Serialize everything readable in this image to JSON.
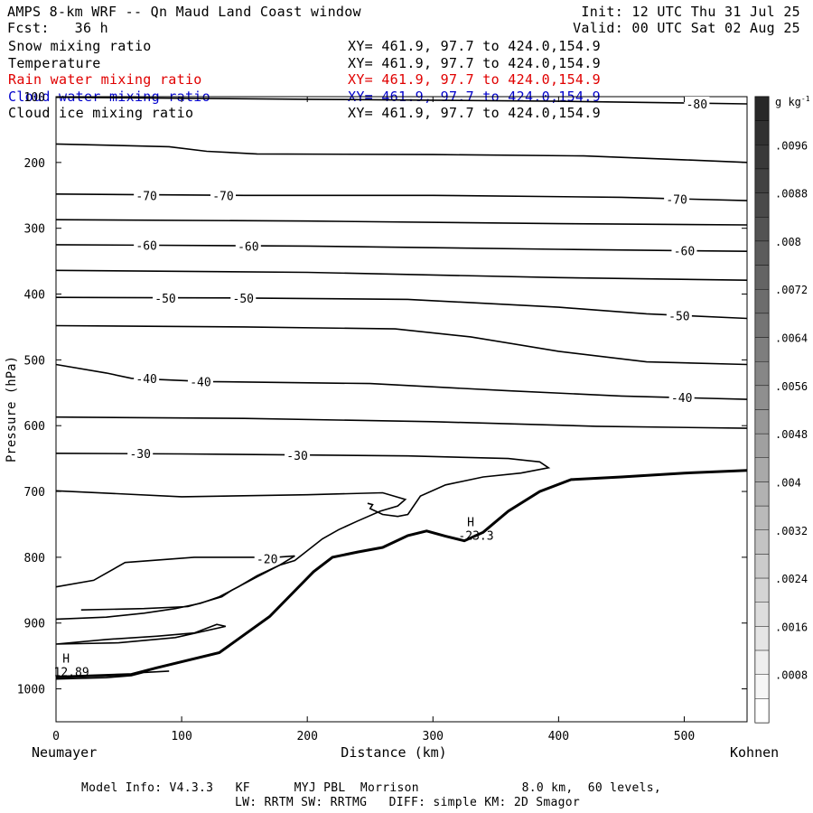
{
  "header": {
    "title": "AMPS 8-km WRF -- Qn Maud Land Coast window",
    "init": "Init: 12 UTC Thu 31 Jul 25",
    "fcst": "Fcst:   36 h",
    "valid": "Valid: 00 UTC Sat 02 Aug 25"
  },
  "fields": [
    {
      "label": "Snow mixing ratio",
      "xy": "XY= 461.9, 97.7 to 424.0,154.9",
      "color": "#000000"
    },
    {
      "label": "Temperature",
      "xy": "XY= 461.9, 97.7 to 424.0,154.9",
      "color": "#000000"
    },
    {
      "label": "Rain water mixing ratio",
      "xy": "XY= 461.9, 97.7 to 424.0,154.9",
      "color": "#e00000"
    },
    {
      "label": "Cloud water mixing ratio",
      "xy": "XY= 461.9, 97.7 to 424.0,154.9",
      "color": "#0000cc"
    },
    {
      "label": "Cloud ice mixing ratio",
      "xy": "XY= 461.9, 97.7 to 424.0,154.9",
      "color": "#000000"
    }
  ],
  "footer": {
    "line1": "Model Info: V4.3.3   KF      MYJ PBL  Morrison              8.0 km,  60 levels,",
    "line2": "LW: RRTM SW: RRTMG   DIFF: simple KM: 2D Smagor"
  },
  "endpoints": {
    "left": "Neumayer",
    "right": "Kohnen"
  },
  "chart_data": {
    "type": "contour",
    "xlabel": "Distance (km)",
    "ylabel": "Pressure (hPa)",
    "xlim": [
      0,
      550
    ],
    "ylim": [
      1050,
      100
    ],
    "x_ticks": [
      0,
      100,
      200,
      300,
      400,
      500
    ],
    "y_ticks": [
      100,
      200,
      300,
      400,
      500,
      600,
      700,
      800,
      900,
      1000
    ],
    "colorbar": {
      "unit": "g kg-1",
      "labels": [
        ".0096",
        ".0088",
        ".008",
        ".0072",
        ".0064",
        ".0056",
        ".0048",
        ".004",
        ".0032",
        ".0024",
        ".0016",
        ".0008"
      ],
      "levels": [
        0.0008,
        0.0016,
        0.0024,
        0.0032,
        0.004,
        0.0048,
        0.0056,
        0.0064,
        0.0072,
        0.008,
        0.0088,
        0.0096
      ]
    },
    "isotherms": [
      {
        "level": -80,
        "points": [
          [
            0,
            101
          ],
          [
            200,
            104
          ],
          [
            400,
            107
          ],
          [
            550,
            111
          ]
        ],
        "labels": [
          [
            510,
            111
          ]
        ]
      },
      {
        "level": -75,
        "points": [
          [
            0,
            172
          ],
          [
            90,
            176
          ],
          [
            120,
            183
          ],
          [
            160,
            187
          ],
          [
            300,
            188
          ],
          [
            420,
            190
          ],
          [
            500,
            196
          ],
          [
            550,
            200
          ]
        ],
        "labels": []
      },
      {
        "level": -70,
        "points": [
          [
            0,
            248
          ],
          [
            150,
            250
          ],
          [
            300,
            250
          ],
          [
            450,
            253
          ],
          [
            550,
            258
          ]
        ],
        "labels": [
          [
            72,
            250
          ],
          [
            133,
            250
          ],
          [
            494,
            256
          ]
        ]
      },
      {
        "level": -65,
        "points": [
          [
            0,
            287
          ],
          [
            200,
            289
          ],
          [
            400,
            293
          ],
          [
            550,
            295
          ]
        ],
        "labels": []
      },
      {
        "level": -60,
        "points": [
          [
            0,
            325
          ],
          [
            200,
            327
          ],
          [
            400,
            332
          ],
          [
            550,
            335
          ]
        ],
        "labels": [
          [
            72,
            326
          ],
          [
            153,
            327
          ],
          [
            500,
            334
          ]
        ]
      },
      {
        "level": -55,
        "points": [
          [
            0,
            364
          ],
          [
            200,
            367
          ],
          [
            400,
            375
          ],
          [
            550,
            379
          ]
        ],
        "labels": []
      },
      {
        "level": -50,
        "points": [
          [
            0,
            405
          ],
          [
            150,
            406
          ],
          [
            280,
            408
          ],
          [
            400,
            420
          ],
          [
            470,
            430
          ],
          [
            550,
            437
          ]
        ],
        "labels": [
          [
            87,
            406
          ],
          [
            149,
            406
          ],
          [
            496,
            433
          ]
        ]
      },
      {
        "level": -45,
        "points": [
          [
            0,
            448
          ],
          [
            150,
            450
          ],
          [
            270,
            453
          ],
          [
            330,
            465
          ],
          [
            400,
            487
          ],
          [
            470,
            503
          ],
          [
            550,
            507
          ]
        ],
        "labels": []
      },
      {
        "level": -40,
        "points": [
          [
            0,
            507
          ],
          [
            40,
            520
          ],
          [
            60,
            528
          ],
          [
            120,
            533
          ],
          [
            250,
            536
          ],
          [
            360,
            547
          ],
          [
            450,
            555
          ],
          [
            550,
            560
          ]
        ],
        "labels": [
          [
            72,
            528
          ],
          [
            115,
            533
          ],
          [
            498,
            557
          ]
        ]
      },
      {
        "level": -35,
        "points": [
          [
            0,
            587
          ],
          [
            150,
            589
          ],
          [
            300,
            594
          ],
          [
            430,
            601
          ],
          [
            550,
            604
          ]
        ],
        "labels": []
      },
      {
        "level": -30,
        "points": [
          [
            0,
            642
          ],
          [
            100,
            643
          ],
          [
            280,
            646
          ],
          [
            360,
            650
          ],
          [
            385,
            655
          ],
          [
            392,
            664
          ],
          [
            370,
            672
          ],
          [
            340,
            678
          ],
          [
            310,
            690
          ],
          [
            290,
            707
          ],
          [
            280,
            735
          ],
          [
            272,
            738
          ],
          [
            260,
            735
          ],
          [
            250,
            726
          ],
          [
            252,
            720
          ],
          [
            248,
            718
          ]
        ],
        "labels": [
          [
            67,
            642
          ],
          [
            192,
            645
          ]
        ]
      },
      {
        "level": -25,
        "points": [
          [
            0,
            699
          ],
          [
            100,
            708
          ],
          [
            200,
            705
          ],
          [
            260,
            702
          ],
          [
            278,
            712
          ],
          [
            272,
            722
          ],
          [
            258,
            730
          ],
          [
            240,
            745
          ],
          [
            225,
            758
          ],
          [
            212,
            772
          ],
          [
            200,
            790
          ],
          [
            190,
            805
          ],
          [
            178,
            812
          ],
          [
            160,
            828
          ],
          [
            145,
            845
          ],
          [
            130,
            860
          ],
          [
            115,
            870
          ],
          [
            95,
            878
          ],
          [
            70,
            885
          ],
          [
            40,
            891
          ],
          [
            0,
            894
          ]
        ],
        "labels": []
      },
      {
        "level": -20,
        "points": [
          [
            0,
            845
          ],
          [
            30,
            835
          ],
          [
            55,
            808
          ],
          [
            110,
            800
          ],
          [
            175,
            800
          ],
          [
            190,
            798
          ],
          [
            178,
            812
          ],
          [
            160,
            830
          ],
          [
            140,
            850
          ],
          [
            132,
            860
          ],
          [
            118,
            868
          ],
          [
            105,
            875
          ],
          [
            70,
            878
          ],
          [
            20,
            880
          ]
        ],
        "labels": [
          [
            168,
            802
          ]
        ]
      },
      {
        "level": -15,
        "points": [
          [
            0,
            932
          ],
          [
            50,
            930
          ],
          [
            95,
            922
          ],
          [
            135,
            905
          ],
          [
            128,
            902
          ],
          [
            110,
            915
          ],
          [
            80,
            920
          ],
          [
            40,
            925
          ],
          [
            0,
            932
          ]
        ],
        "labels": []
      },
      {
        "level": -10,
        "points": [
          [
            0,
            985
          ],
          [
            40,
            983
          ],
          [
            60,
            980
          ],
          [
            70,
            975
          ],
          [
            90,
            973
          ]
        ],
        "labels": []
      }
    ],
    "extrema": [
      {
        "type": "H",
        "x": 8,
        "y": 960,
        "value": "12.89"
      },
      {
        "type": "H",
        "x": 330,
        "y": 753,
        "value": "-23.3"
      }
    ],
    "terrain": [
      [
        0,
        982
      ],
      [
        60,
        978
      ],
      [
        80,
        968
      ],
      [
        130,
        945
      ],
      [
        170,
        890
      ],
      [
        205,
        822
      ],
      [
        220,
        800
      ],
      [
        240,
        792
      ],
      [
        260,
        785
      ],
      [
        280,
        767
      ],
      [
        295,
        760
      ],
      [
        310,
        768
      ],
      [
        325,
        775
      ],
      [
        340,
        762
      ],
      [
        360,
        730
      ],
      [
        385,
        700
      ],
      [
        410,
        682
      ],
      [
        450,
        678
      ],
      [
        500,
        672
      ],
      [
        550,
        668
      ]
    ]
  }
}
